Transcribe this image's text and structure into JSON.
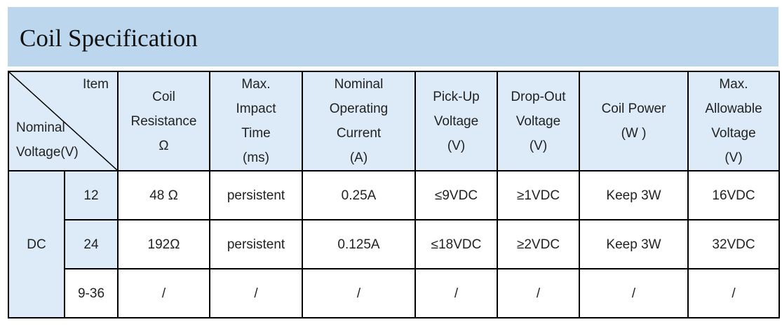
{
  "title": "Coil Specification",
  "header": {
    "corner_item": "Item",
    "corner_nominal_line1": "Nominal",
    "corner_nominal_line2": "Voltage(V)",
    "columns": [
      [
        "Coil",
        "Resistance",
        "Ω"
      ],
      [
        "Max.",
        "Impact",
        "Time",
        "(ms)"
      ],
      [
        "Nominal",
        "Operating",
        "Current",
        "(A)"
      ],
      [
        "Pick-Up",
        "Voltage",
        "(V)"
      ],
      [
        "Drop-Out",
        "Voltage",
        "(V)"
      ],
      [
        "Coil Power",
        "(W )"
      ],
      [
        "Max.",
        "Allowable",
        "Voltage",
        "(V)"
      ]
    ]
  },
  "group_label": "DC",
  "rows": [
    {
      "voltage": "12",
      "cells": [
        "48 Ω",
        "persistent",
        "0.25A",
        "≤9VDC",
        "≥1VDC",
        "Keep 3W",
        "16VDC"
      ]
    },
    {
      "voltage": "24",
      "cells": [
        "192Ω",
        "persistent",
        "0.125A",
        "≤18VDC",
        "≥2VDC",
        "Keep 3W",
        "32VDC"
      ]
    },
    {
      "voltage": "9-36",
      "cells": [
        "/",
        "/",
        "/",
        "/",
        "/",
        "/",
        "/"
      ]
    }
  ]
}
